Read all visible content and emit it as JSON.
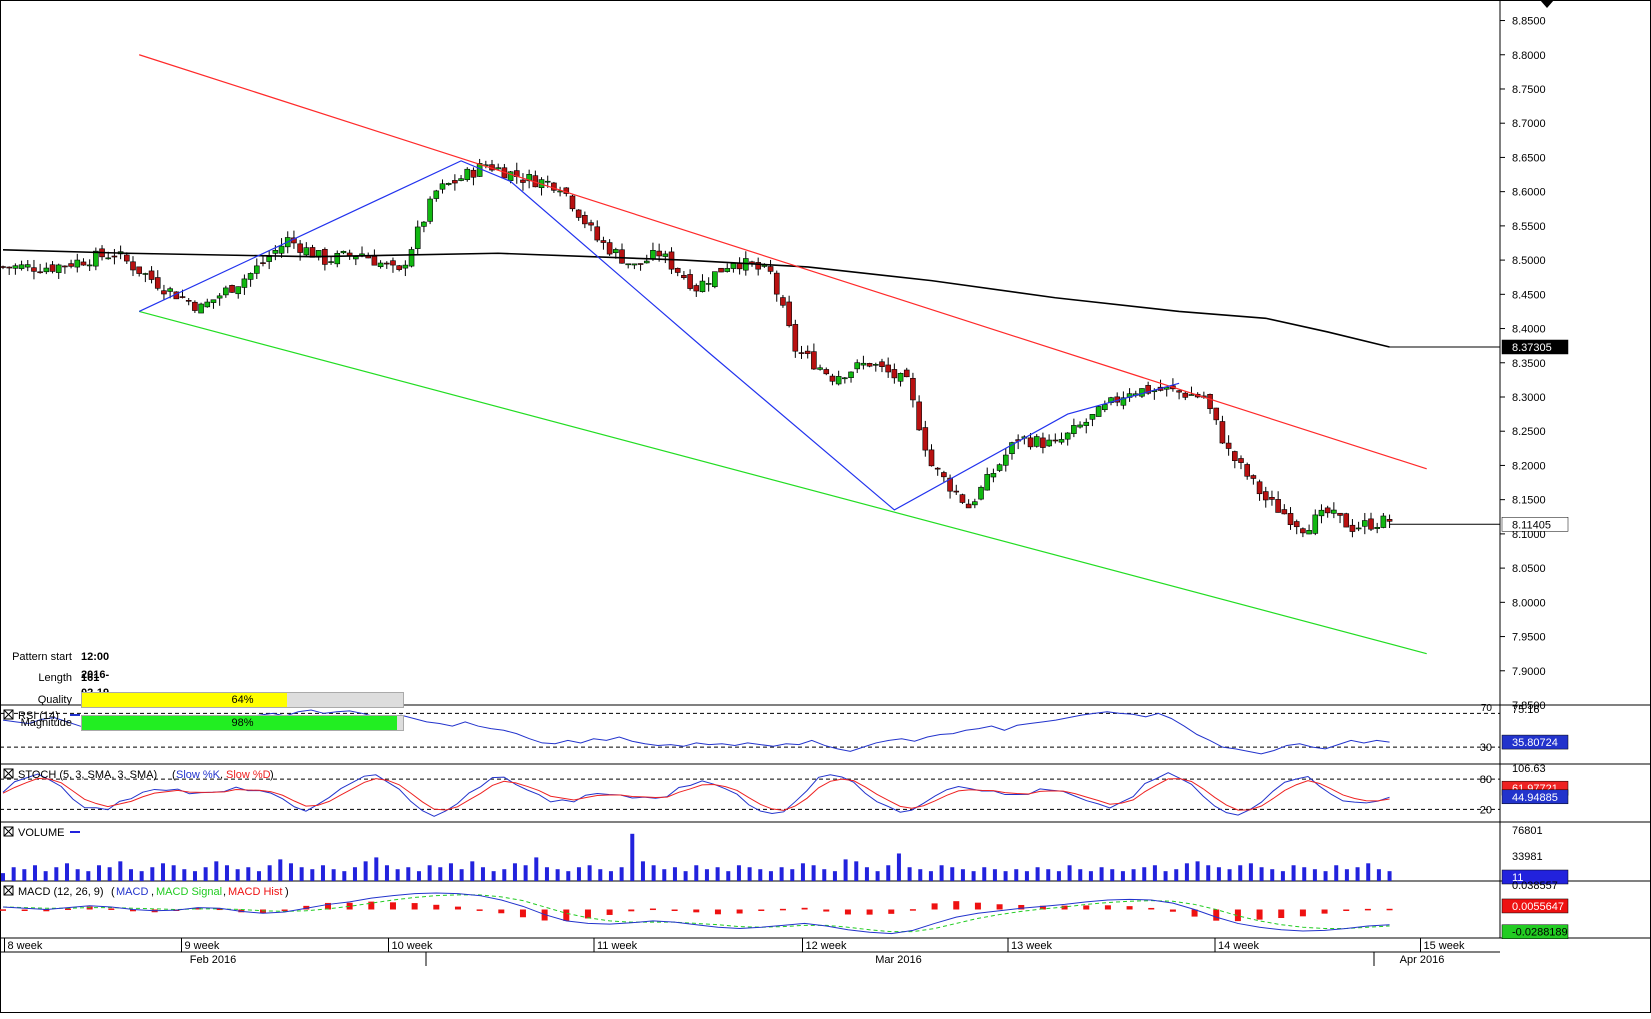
{
  "colors": {
    "up": "#11b811",
    "down": "#b81111",
    "ma": "#000000",
    "resistance": "#ff2a2a",
    "support": "#22dd22",
    "pattern": "#2233ee",
    "rsi": "#2233cc",
    "stoch_k": "#2233cc",
    "stoch_d": "#ee2222",
    "volume": "#2222dd",
    "macd": "#2233cc",
    "signal": "#22cc22",
    "hist": "#ee1111",
    "quality_fill": "#ffff00",
    "magnitude_fill": "#22ee22"
  },
  "pattern_info": {
    "start_label": "Pattern start",
    "start_value": "12:00 2016-02-19",
    "length_label": "Length",
    "length_value": "161 bars",
    "quality_label": "Quality",
    "quality_value": "64%",
    "quality_fraction": 0.64,
    "magnitude_label": "Magnitude",
    "magnitude_value": "98%",
    "magnitude_fraction": 0.98
  },
  "chart_data": [
    {
      "name": "price",
      "type": "candlestick",
      "y_ticks": [
        "8.8500",
        "8.8000",
        "8.7500",
        "8.7000",
        "8.6500",
        "8.6000",
        "8.5500",
        "8.5000",
        "8.4500",
        "8.4000",
        "8.3500",
        "8.3000",
        "8.2500",
        "8.2000",
        "8.1500",
        "8.1000",
        "8.0500",
        "8.0000",
        "7.9500",
        "7.9000",
        "7.8500"
      ],
      "ylim": [
        7.85,
        8.88
      ],
      "price_tags": [
        "8.37305",
        "8.11405"
      ],
      "ma_value": 8.37305,
      "last_close": 8.11405,
      "close_path": [
        [
          0,
          8.49
        ],
        [
          8,
          8.49
        ],
        [
          18,
          8.51
        ],
        [
          26,
          8.46
        ],
        [
          32,
          8.43
        ],
        [
          40,
          8.48
        ],
        [
          46,
          8.53
        ],
        [
          52,
          8.5
        ],
        [
          58,
          8.51
        ],
        [
          64,
          8.48
        ],
        [
          70,
          8.6
        ],
        [
          78,
          8.64
        ],
        [
          84,
          8.62
        ],
        [
          90,
          8.61
        ],
        [
          96,
          8.53
        ],
        [
          102,
          8.49
        ],
        [
          106,
          8.51
        ],
        [
          112,
          8.46
        ],
        [
          118,
          8.5
        ],
        [
          124,
          8.48
        ],
        [
          128,
          8.37
        ],
        [
          134,
          8.33
        ],
        [
          140,
          8.35
        ],
        [
          146,
          8.32
        ],
        [
          150,
          8.2
        ],
        [
          156,
          8.14
        ],
        [
          164,
          8.24
        ],
        [
          170,
          8.23
        ],
        [
          176,
          8.27
        ],
        [
          182,
          8.31
        ],
        [
          188,
          8.31
        ],
        [
          194,
          8.3
        ],
        [
          198,
          8.22
        ],
        [
          204,
          8.15
        ],
        [
          210,
          8.11
        ],
        [
          214,
          8.13
        ],
        [
          218,
          8.11
        ],
        [
          224,
          8.12
        ]
      ],
      "ma_path": [
        [
          0,
          8.515
        ],
        [
          20,
          8.51
        ],
        [
          50,
          8.505
        ],
        [
          80,
          8.51
        ],
        [
          110,
          8.5
        ],
        [
          130,
          8.49
        ],
        [
          150,
          8.47
        ],
        [
          170,
          8.445
        ],
        [
          190,
          8.425
        ],
        [
          204,
          8.415
        ],
        [
          214,
          8.395
        ],
        [
          224,
          8.373
        ]
      ],
      "resistance_line": {
        "from": [
          22,
          8.8
        ],
        "to": [
          230,
          8.195
        ]
      },
      "support_line": {
        "from": [
          22,
          8.425
        ],
        "to": [
          230,
          7.925
        ]
      },
      "pattern_path": [
        [
          22,
          8.425
        ],
        [
          74,
          8.645
        ],
        [
          82,
          8.615
        ],
        [
          114,
          8.365
        ],
        [
          144,
          8.135
        ],
        [
          172,
          8.275
        ],
        [
          190,
          8.32
        ]
      ]
    },
    {
      "name": "rsi",
      "type": "line",
      "title": "RSI (14)",
      "levels": [
        70,
        30
      ],
      "y_ticks": [
        "75.16",
        "30"
      ],
      "ylim": [
        10,
        80
      ],
      "value_tag": "35.80724",
      "series": [
        {
          "name": "RSI (14)",
          "values": [
            62,
            60,
            58,
            63,
            65,
            60,
            55,
            52,
            56,
            60,
            58,
            55,
            57,
            62,
            65,
            60,
            58,
            62,
            64,
            66,
            68,
            70,
            67,
            72,
            74,
            70,
            72,
            73,
            70,
            66,
            62,
            68,
            64,
            60,
            58,
            55,
            60,
            55,
            52,
            50,
            46,
            40,
            35,
            34,
            38,
            35,
            40,
            38,
            42,
            37,
            34,
            32,
            33,
            31,
            35,
            33,
            34,
            32,
            35,
            33,
            31,
            34,
            33,
            38,
            32,
            28,
            25,
            30,
            35,
            38,
            40,
            37,
            42,
            45,
            46,
            50,
            52,
            55,
            50,
            56,
            58,
            60,
            62,
            65,
            68,
            70,
            72,
            70,
            69,
            66,
            70,
            64,
            55,
            45,
            38,
            30,
            28,
            25,
            22,
            26,
            32,
            34,
            30,
            28,
            33,
            38,
            35,
            38,
            36
          ]
        }
      ]
    },
    {
      "name": "stochastic",
      "type": "line",
      "title": "STOCH (5, 3, SMA, 3, SMA)",
      "legend": [
        "Slow %K",
        "Slow %D"
      ],
      "levels": [
        80,
        20
      ],
      "y_ticks": [
        "106.63",
        "80",
        "20"
      ],
      "ylim": [
        -5,
        110
      ],
      "value_tags": [
        "61.97721",
        "44.94885"
      ]
    },
    {
      "name": "volume",
      "type": "bar",
      "title": "VOLUME",
      "y_ticks": [
        "76801",
        "33981"
      ],
      "ylim": [
        0,
        76801
      ],
      "value_tag": "11",
      "values": [
        8,
        14,
        12,
        16,
        10,
        14,
        18,
        12,
        10,
        16,
        14,
        20,
        12,
        10,
        14,
        18,
        16,
        12,
        10,
        14,
        20,
        16,
        12,
        14,
        10,
        16,
        22,
        18,
        14,
        12,
        16,
        12,
        10,
        14,
        20,
        24,
        16,
        12,
        14,
        10,
        16,
        14,
        18,
        12,
        20,
        14,
        10,
        12,
        18,
        16,
        24,
        14,
        12,
        10,
        14,
        16,
        12,
        10,
        14,
        48,
        20,
        16,
        12,
        14,
        10,
        16,
        12,
        14,
        10,
        16,
        14,
        12,
        10,
        14,
        12,
        18,
        16,
        12,
        10,
        22,
        20,
        14,
        10,
        16,
        28,
        14,
        12,
        10,
        16,
        14,
        12,
        10,
        14,
        12,
        10,
        12,
        10,
        14,
        12,
        10,
        16,
        12,
        10,
        14,
        12,
        10,
        12,
        14,
        16,
        10,
        12,
        18,
        20,
        16,
        14,
        12,
        16,
        18,
        14,
        12,
        10,
        16,
        14,
        12,
        10,
        16,
        12,
        14,
        18,
        12,
        10
      ]
    },
    {
      "name": "macd",
      "type": "line",
      "title": "MACD (12, 26, 9)",
      "legend": [
        "MACD",
        "MACD Signal",
        "MACD Hist"
      ],
      "y_ticks": [
        "0.038557"
      ],
      "ylim": [
        -0.045,
        0.045
      ],
      "value_tags": [
        "0.0055647",
        "-0.0288189"
      ],
      "macd_values": [
        0.004,
        0.002,
        0.0,
        0.003,
        0.006,
        0.004,
        0.0,
        -0.002,
        -0.001,
        0.003,
        0.002,
        -0.003,
        -0.006,
        -0.004,
        0.002,
        0.008,
        0.012,
        0.018,
        0.022,
        0.025,
        0.026,
        0.025,
        0.022,
        0.015,
        0.005,
        -0.008,
        -0.018,
        -0.022,
        -0.023,
        -0.021,
        -0.018,
        -0.02,
        -0.024,
        -0.028,
        -0.03,
        -0.028,
        -0.025,
        -0.022,
        -0.026,
        -0.032,
        -0.036,
        -0.038,
        -0.033,
        -0.022,
        -0.012,
        -0.006,
        -0.002,
        0.002,
        0.005,
        0.008,
        0.012,
        0.015,
        0.016,
        0.015,
        0.01,
        0.0,
        -0.012,
        -0.022,
        -0.028,
        -0.032,
        -0.034,
        -0.033,
        -0.03,
        -0.026,
        -0.024
      ],
      "signal_values": [
        0.004,
        0.003,
        0.002,
        0.002,
        0.003,
        0.003,
        0.002,
        0.001,
        0.0,
        0.001,
        0.001,
        0.0,
        -0.002,
        -0.003,
        -0.002,
        0.001,
        0.005,
        0.01,
        0.015,
        0.019,
        0.022,
        0.023,
        0.023,
        0.02,
        0.014,
        0.004,
        -0.006,
        -0.013,
        -0.018,
        -0.02,
        -0.02,
        -0.02,
        -0.022,
        -0.024,
        -0.027,
        -0.028,
        -0.027,
        -0.025,
        -0.025,
        -0.028,
        -0.032,
        -0.035,
        -0.035,
        -0.03,
        -0.022,
        -0.014,
        -0.008,
        -0.003,
        0.001,
        0.004,
        0.008,
        0.011,
        0.013,
        0.014,
        0.013,
        0.008,
        0.0,
        -0.01,
        -0.018,
        -0.024,
        -0.028,
        -0.03,
        -0.03,
        -0.028,
        -0.026
      ]
    }
  ],
  "x_axis": {
    "weeks": [
      {
        "label": "8 week",
        "pos": 0.003
      },
      {
        "label": "9 week",
        "pos": 0.121
      },
      {
        "label": "10 week",
        "pos": 0.259
      },
      {
        "label": "11 week",
        "pos": 0.396
      },
      {
        "label": "12 week",
        "pos": 0.535
      },
      {
        "label": "13 week",
        "pos": 0.672
      },
      {
        "label": "14 week",
        "pos": 0.81
      },
      {
        "label": "15 week",
        "pos": 0.947
      }
    ],
    "months": [
      {
        "label": "Feb 2016",
        "pos": 0.142
      },
      {
        "label": "Mar 2016",
        "pos": 0.599
      },
      {
        "label": "Apr 2016",
        "pos": 0.948
      }
    ]
  }
}
